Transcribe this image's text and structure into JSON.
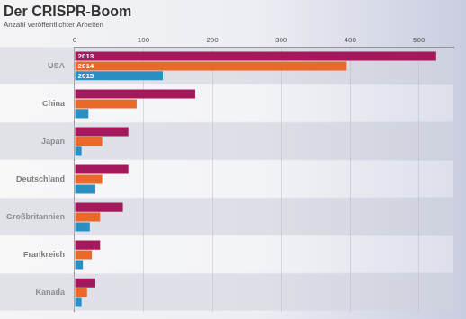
{
  "chart_data": {
    "type": "bar",
    "orientation": "horizontal",
    "title": "Der CRISPR-Boom",
    "subtitle": "Anzahl veröffentlichter Arbeiten",
    "categories": [
      "USA",
      "China",
      "Japan",
      "Deutschland",
      "Großbritannien",
      "Frankreich",
      "Kanada"
    ],
    "series": [
      {
        "name": "2013",
        "color": "#a3195b",
        "values": [
          525,
          175,
          78,
          78,
          70,
          37,
          30
        ]
      },
      {
        "name": "2014",
        "color": "#e8692a",
        "values": [
          395,
          90,
          40,
          40,
          37,
          25,
          18
        ]
      },
      {
        "name": "2015",
        "color": "#2b8fc4",
        "values": [
          128,
          20,
          10,
          30,
          22,
          12,
          10
        ]
      }
    ],
    "xlim": [
      0,
      550
    ],
    "xticks": [
      0,
      100,
      200,
      300,
      400,
      500
    ],
    "grid": true
  }
}
